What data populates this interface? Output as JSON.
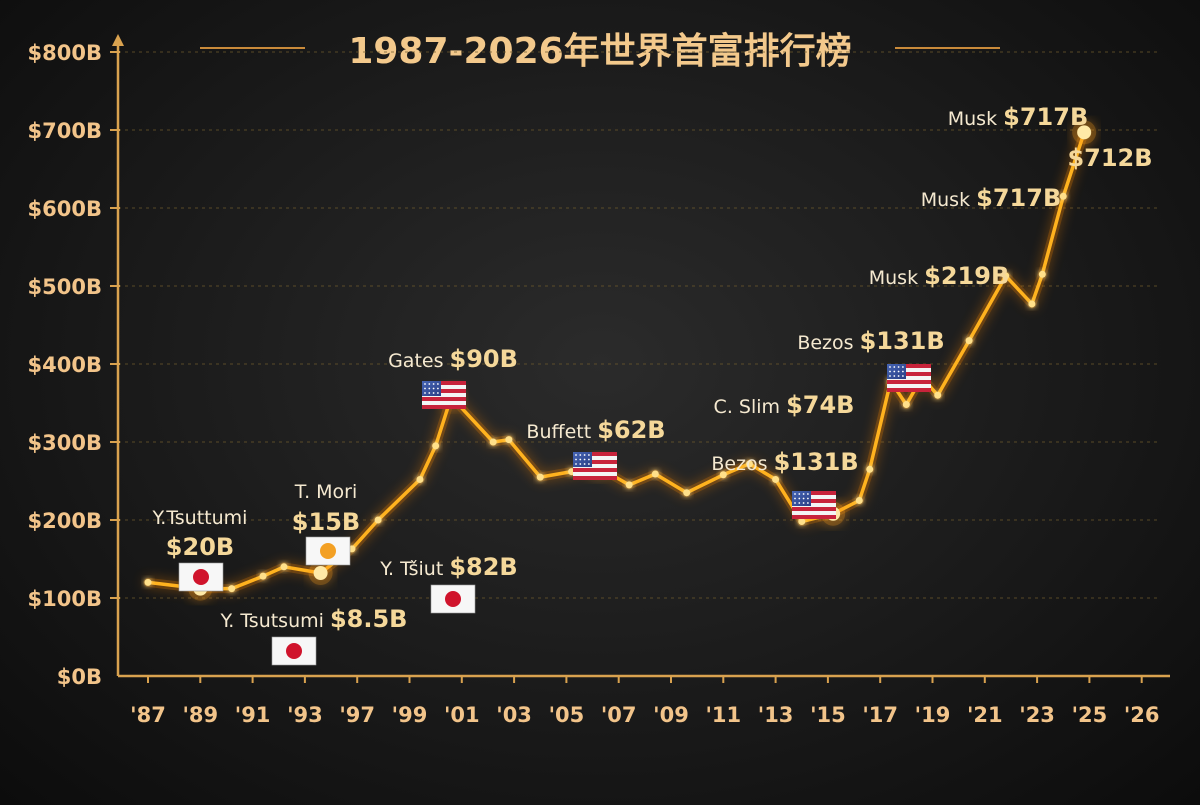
{
  "title": "1987-2026年世界首富排行榜",
  "colors": {
    "background": "#1a1a1a",
    "line": "#ffb21e",
    "title": "#f3c98c",
    "tick_label": "#f2c48a",
    "annotation_name": "#f5e9d0",
    "annotation_value": "#f5d89a",
    "gridline": "#6e5a2c"
  },
  "chart_data": {
    "type": "line",
    "title": "1987-2026年世界首富排行榜",
    "xlabel": "",
    "ylabel": "",
    "ylim": [
      0,
      800
    ],
    "grid": true,
    "y_ticks": [
      {
        "value": 0,
        "label": "$0B"
      },
      {
        "value": 100,
        "label": "$100B"
      },
      {
        "value": 200,
        "label": "$200B"
      },
      {
        "value": 300,
        "label": "$300B"
      },
      {
        "value": 400,
        "label": "$400B"
      },
      {
        "value": 500,
        "label": "$500B"
      },
      {
        "value": 600,
        "label": "$600B"
      },
      {
        "value": 700,
        "label": "$700B"
      },
      {
        "value": 800,
        "label": "$800B"
      }
    ],
    "x_ticks": [
      "'87",
      "'89",
      "'91",
      "'93",
      "'97",
      "'99",
      "'01",
      "'03",
      "'05",
      "'07",
      "'09",
      "'11",
      "'13",
      "'15",
      "'17",
      "'19",
      "'21",
      "'23",
      "'25",
      "'26"
    ],
    "series": [
      {
        "points": [
          {
            "x": 0,
            "y": 120
          },
          {
            "x": 1,
            "y": 112
          },
          {
            "x": 1.6,
            "y": 112
          },
          {
            "x": 2.2,
            "y": 128
          },
          {
            "x": 2.6,
            "y": 140
          },
          {
            "x": 3.3,
            "y": 132
          },
          {
            "x": 3.9,
            "y": 163
          },
          {
            "x": 4.4,
            "y": 200
          },
          {
            "x": 5.2,
            "y": 252
          },
          {
            "x": 5.5,
            "y": 295
          },
          {
            "x": 5.8,
            "y": 358
          },
          {
            "x": 6.6,
            "y": 300
          },
          {
            "x": 6.9,
            "y": 303
          },
          {
            "x": 7.5,
            "y": 255
          },
          {
            "x": 8.1,
            "y": 262
          },
          {
            "x": 8.6,
            "y": 268
          },
          {
            "x": 9.2,
            "y": 245
          },
          {
            "x": 9.7,
            "y": 259
          },
          {
            "x": 10.3,
            "y": 235
          },
          {
            "x": 11,
            "y": 258
          },
          {
            "x": 11.5,
            "y": 272
          },
          {
            "x": 12,
            "y": 252
          },
          {
            "x": 12.5,
            "y": 198
          },
          {
            "x": 13.1,
            "y": 208
          },
          {
            "x": 13.6,
            "y": 225
          },
          {
            "x": 13.8,
            "y": 265
          },
          {
            "x": 14.2,
            "y": 378
          },
          {
            "x": 14.5,
            "y": 348
          },
          {
            "x": 14.8,
            "y": 383
          },
          {
            "x": 15.1,
            "y": 360
          },
          {
            "x": 15.7,
            "y": 430
          },
          {
            "x": 16.4,
            "y": 513
          },
          {
            "x": 16.9,
            "y": 477
          },
          {
            "x": 17.1,
            "y": 515
          },
          {
            "x": 17.5,
            "y": 615
          },
          {
            "x": 17.9,
            "y": 697
          }
        ]
      }
    ],
    "markers": [
      {
        "x": 1,
        "y": 112
      },
      {
        "x": 3.3,
        "y": 132
      },
      {
        "x": 5.8,
        "y": 358
      },
      {
        "x": 8.6,
        "y": 268
      },
      {
        "x": 13.1,
        "y": 208
      },
      {
        "x": 17.9,
        "y": 697
      }
    ]
  },
  "annotations": [
    {
      "name": "Y.Tsuttumi",
      "value": "$20B",
      "flag": "japan-flag"
    },
    {
      "name": "Y. Tsutsumi",
      "value": "$8.5B",
      "flag": "japan-flag"
    },
    {
      "name": "T. Mori",
      "value": "$15B",
      "flag": "sun-flag"
    },
    {
      "name": "Y. Tšiut",
      "value": "$82B",
      "flag": "japan-flag"
    },
    {
      "name": "Gates",
      "value": "$90B",
      "flag": "usa-flag"
    },
    {
      "name": "Buffett",
      "value": "$62B",
      "flag": "usa-flag"
    },
    {
      "name": "Bezos",
      "value": "$131B",
      "flag": "usa-flag"
    },
    {
      "name": "C. Slim",
      "value": "$74B",
      "flag": ""
    },
    {
      "name": "Bezos",
      "value": "$131B",
      "flag": "usa-flag"
    },
    {
      "name": "Musk",
      "value": "$219B",
      "flag": ""
    },
    {
      "name": "Musk",
      "value": "$717B",
      "flag": ""
    },
    {
      "name": "Musk",
      "value": "$717B",
      "flag": ""
    },
    {
      "name": "",
      "value": "$712B",
      "flag": ""
    }
  ]
}
